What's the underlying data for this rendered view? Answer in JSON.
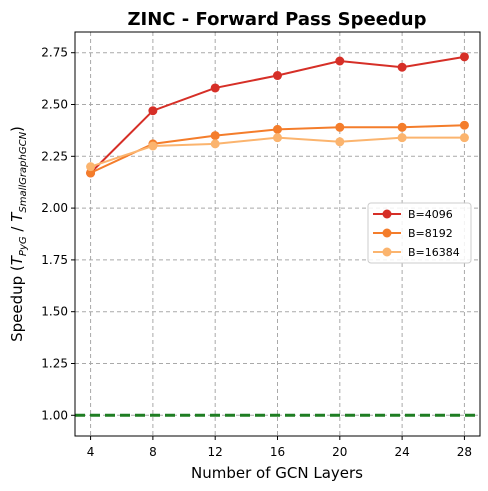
{
  "chart_data": {
    "type": "line",
    "title": "ZINC - Forward Pass Speedup",
    "xlabel": "Number of GCN Layers",
    "ylabel": {
      "prefix": "Speedup (",
      "t1": "T",
      "t1_sub": "PyG",
      "sep": " / ",
      "t2": "T",
      "t2_sub": "SmallGraphGCN",
      "suffix": ")"
    },
    "x": [
      4,
      8,
      12,
      16,
      20,
      24,
      28
    ],
    "x_ticks": [
      "4",
      "8",
      "12",
      "16",
      "20",
      "24",
      "28"
    ],
    "xlim": [
      3,
      29
    ],
    "ylim": [
      0.9,
      2.85
    ],
    "y_ticks": [
      1.0,
      1.25,
      1.5,
      1.75,
      2.0,
      2.25,
      2.5,
      2.75
    ],
    "y_tick_labels": [
      "1.00",
      "1.25",
      "1.50",
      "1.75",
      "2.00",
      "2.25",
      "2.50",
      "2.75"
    ],
    "grid": true,
    "legend_position": "center-right",
    "series": [
      {
        "name": "B=4096",
        "color": "#d62f27",
        "values": [
          2.17,
          2.47,
          2.58,
          2.64,
          2.71,
          2.68,
          2.73
        ]
      },
      {
        "name": "B=8192",
        "color": "#f47d2b",
        "values": [
          2.17,
          2.31,
          2.35,
          2.38,
          2.39,
          2.39,
          2.4
        ]
      },
      {
        "name": "B=16384",
        "color": "#fbb46e",
        "values": [
          2.2,
          2.3,
          2.31,
          2.34,
          2.32,
          2.34,
          2.34
        ]
      }
    ],
    "reference_line": {
      "y": 1.0,
      "color": "#1e7d22",
      "style": "dashed"
    }
  }
}
